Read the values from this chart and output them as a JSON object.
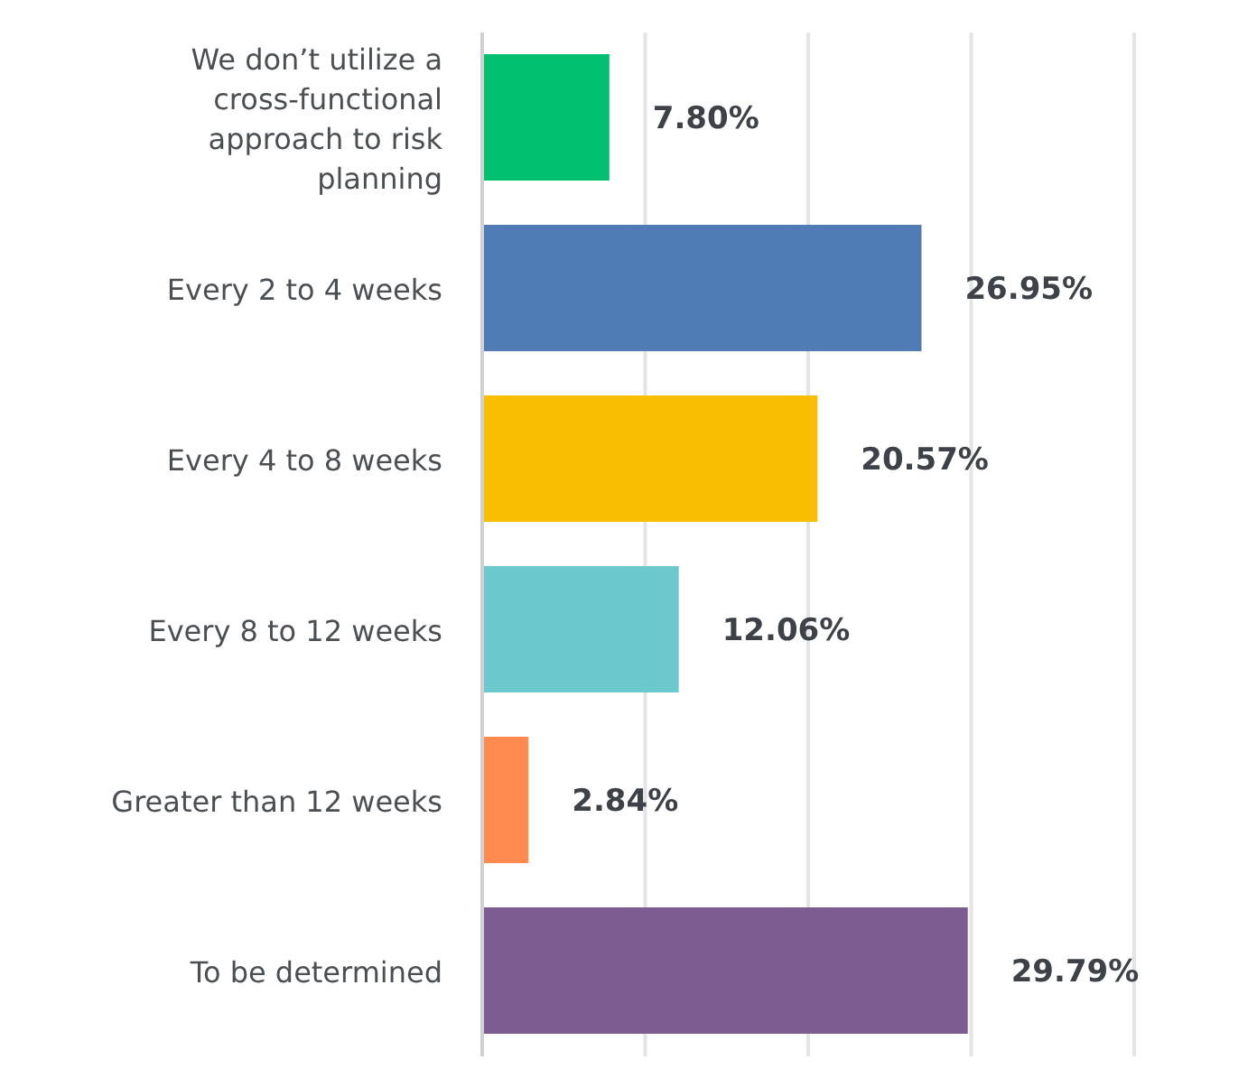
{
  "chart_data": {
    "type": "bar",
    "orientation": "horizontal",
    "categories": [
      "We don’t utilize a cross-functional approach to risk planning",
      "Every 2 to 4 weeks",
      "Every 4 to 8 weeks",
      "Every 8 to 12 weeks",
      "Greater than 12 weeks",
      "To be determined"
    ],
    "values": [
      7.8,
      26.95,
      20.57,
      12.06,
      2.84,
      29.79
    ],
    "colors": [
      "#00bf6f",
      "#507cb6",
      "#f9be00",
      "#6bc8cd",
      "#ff8b4f",
      "#7d5c91"
    ],
    "value_labels": [
      "7.80%",
      "26.95%",
      "20.57%",
      "12.06%",
      "2.84%",
      "29.79%"
    ],
    "xlim": [
      0,
      40
    ],
    "xticks": [
      {
        "value": 0,
        "label": null
      },
      {
        "value": 10,
        "label": null
      },
      {
        "value": 20,
        "label": null
      },
      {
        "value": 30,
        "label": null
      },
      {
        "value": 40,
        "label": null
      }
    ],
    "grid": "x",
    "tick_labels": "y"
  }
}
